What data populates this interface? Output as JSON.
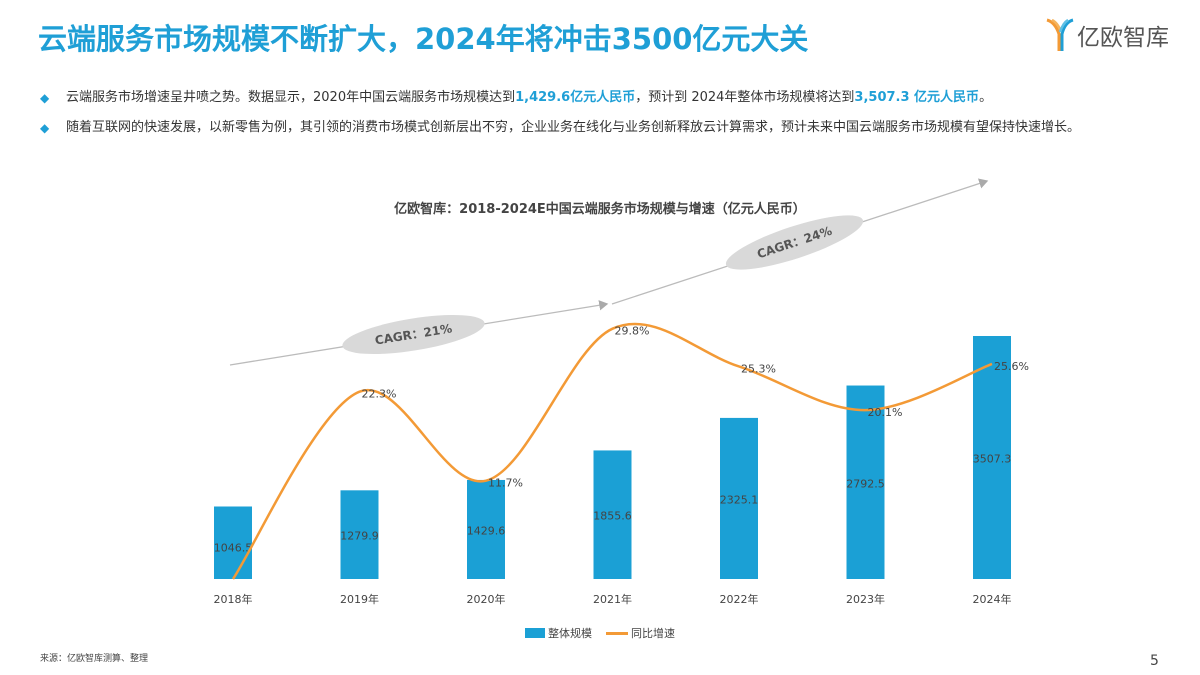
{
  "header": {
    "title": "云端服务市场规模不断扩大，2024年将冲击3500亿元大关",
    "logo_text": "亿欧智库"
  },
  "bullets": [
    {
      "parts": [
        "云端服务市场增速呈井喷之势。数据显示，2020年中国云端服务市场规模达到",
        "1,429.6亿元人民币",
        "，预计到 2024年整体市场规模将达到",
        "3,507.3 亿元人民币",
        "。"
      ]
    },
    {
      "parts": [
        "随着互联网的快速发展，以新零售为例，其引领的消费市场模式创新层出不穷，企业业务在线化与业务创新释放云计算需求，预计未来中国云端服务市场规模有望保持快速增长。"
      ]
    }
  ],
  "colors": {
    "accent": "#1f9fd6",
    "bar": "#1ba0d5",
    "line": "#f39a36",
    "cagr_bubble": "#d9d9d9"
  },
  "icons": {
    "bullet": "diamond-icon"
  },
  "chart_data": {
    "type": "bar+line",
    "title": "亿欧智库：2018-2024E中国云端服务市场规模与增速（亿元人民币）",
    "categories": [
      "2018年",
      "2019年",
      "2020年",
      "2021年",
      "2022年",
      "2023年",
      "2024年"
    ],
    "series": [
      {
        "name": "整体规模",
        "type": "bar",
        "values": [
          1046.5,
          1279.9,
          1429.6,
          1855.6,
          2325.1,
          2792.5,
          3507.3
        ],
        "labels": [
          "1046.5",
          "1279.9",
          "1429.6",
          "1855.6",
          "2325.1",
          "2792.5",
          "3507.3"
        ]
      },
      {
        "name": "同比增速",
        "type": "line",
        "values": [
          0,
          22.3,
          11.7,
          29.8,
          25.3,
          20.1,
          25.6
        ],
        "labels": [
          "",
          "22.3%",
          "11.7%",
          "29.8%",
          "25.3%",
          "20.1%",
          "25.6%"
        ],
        "unit": "%"
      }
    ],
    "ylim_bar": [
      0,
      3600
    ],
    "ylim_line": [
      0,
      30
    ],
    "grid": false,
    "axes_visible": false,
    "legend": "bottom",
    "annotations": [
      {
        "text": "CAGR：21%",
        "from": "2018年",
        "to": "2021年"
      },
      {
        "text": "CAGR：24%",
        "from": "2021年",
        "to": "2024年"
      }
    ]
  },
  "footer": {
    "source": "来源：亿欧智库测算、整理",
    "page": "5"
  }
}
